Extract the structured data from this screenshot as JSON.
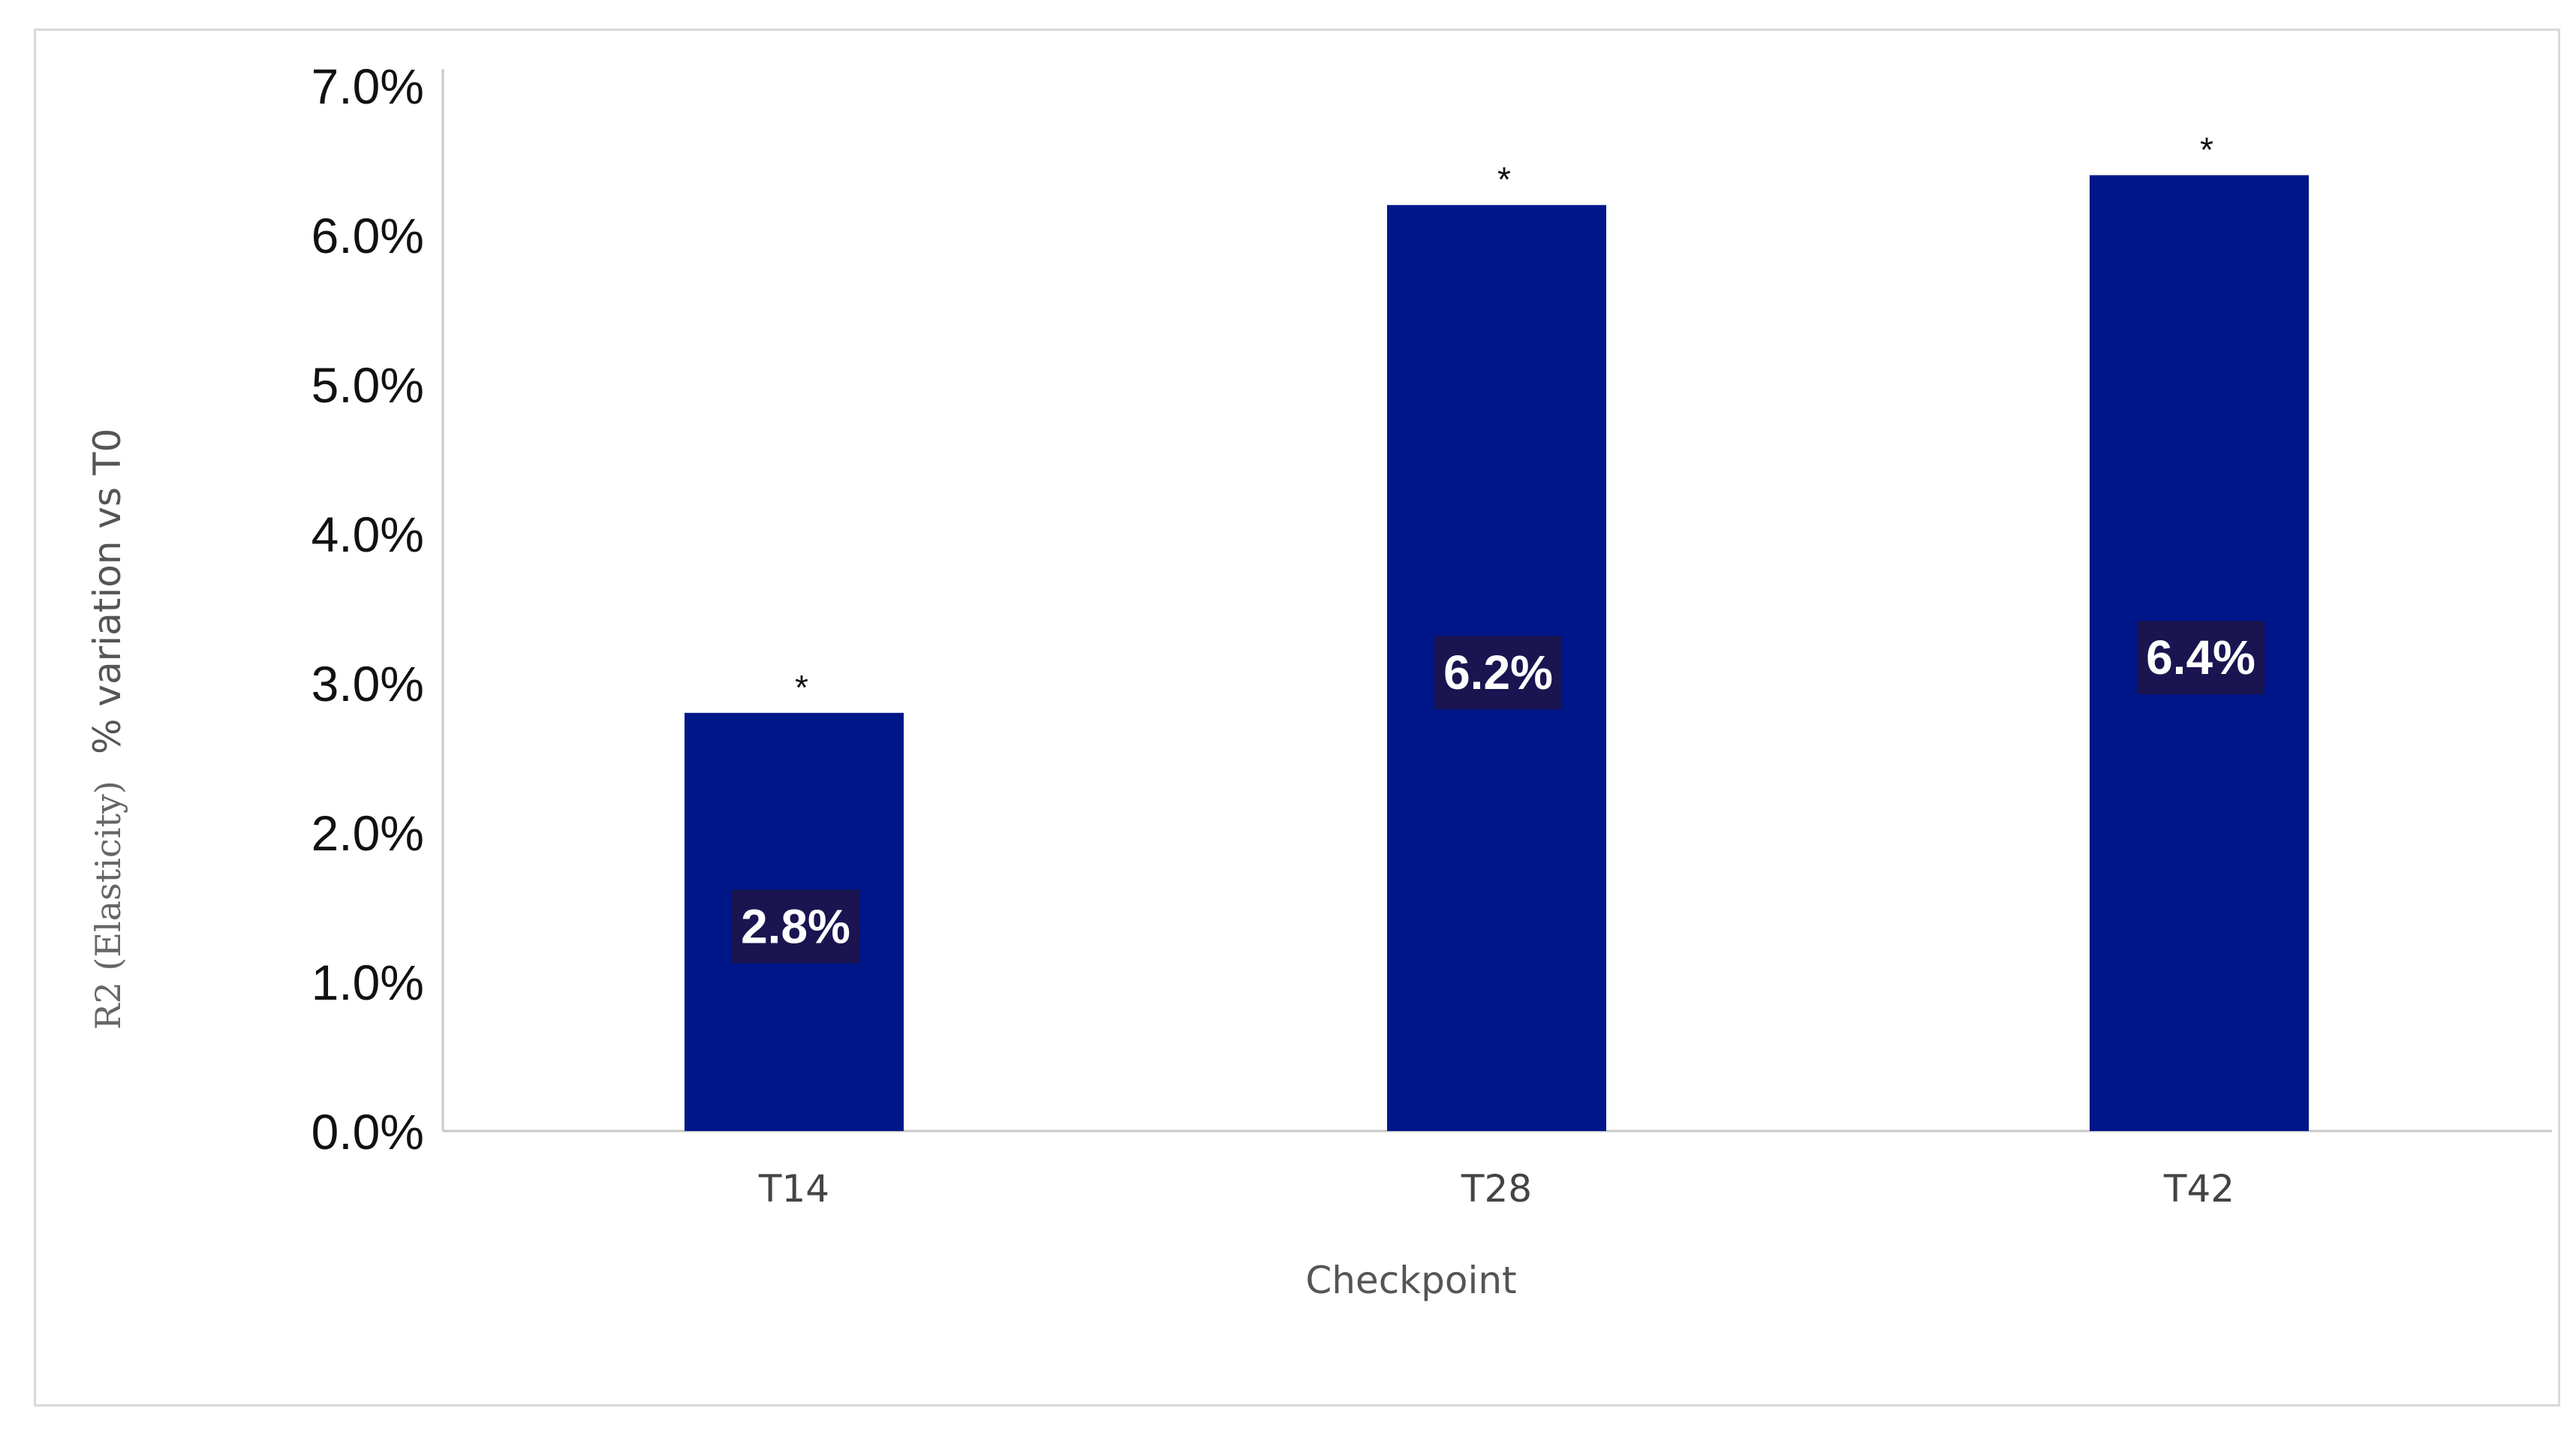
{
  "chart_data": {
    "type": "bar",
    "categories": [
      "T14",
      "T28",
      "T42"
    ],
    "values": [
      2.8,
      6.2,
      6.4
    ],
    "value_labels": [
      "2.8%",
      "6.2%",
      "6.4%"
    ],
    "significance_marks": [
      "*",
      "*",
      "*"
    ],
    "xlabel": "Checkpoint",
    "ylabel_prefix": "R2 (Elasticity)",
    "ylabel": "% variation vs T0",
    "ylim": [
      0,
      7
    ],
    "yticks": [
      0,
      1,
      2,
      3,
      4,
      5,
      6,
      7
    ],
    "ytick_labels": [
      "0.0%",
      "1.0%",
      "2.0%",
      "3.0%",
      "4.0%",
      "5.0%",
      "6.0%",
      "7.0%"
    ],
    "grid": false,
    "legend": "none",
    "colors": {
      "bar": "#00178a",
      "label_box": "#1a1550",
      "axis": "#c8c8c8"
    }
  }
}
